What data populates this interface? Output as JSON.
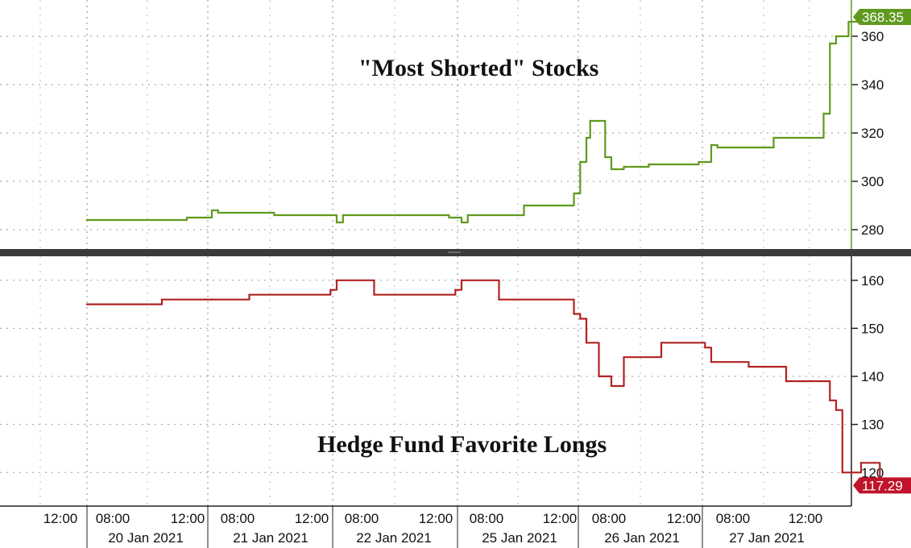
{
  "chart_data": [
    {
      "type": "line",
      "title": "\"Most Shorted\" Stocks",
      "color": "#5f9a1e",
      "last_value_label": "368.35",
      "last_value_bg": "#5f9a1e",
      "ylim": [
        272,
        375
      ],
      "yticks": [
        280,
        300,
        320,
        340,
        360
      ],
      "x": [
        0,
        0.8,
        0.95,
        1.0,
        1.05,
        1.5,
        1.9,
        2.0,
        2.05,
        2.5,
        2.9,
        3.0,
        3.05,
        3.5,
        3.9,
        3.95,
        4.0,
        4.03,
        4.15,
        4.2,
        4.3,
        4.5,
        4.9,
        5.0,
        5.05,
        5.5,
        5.9,
        5.95,
        6.0,
        6.1,
        6.25
      ],
      "values": [
        284,
        285,
        285,
        288,
        287,
        286,
        286,
        283,
        286,
        286,
        285,
        283,
        286,
        290,
        295,
        308,
        318,
        325,
        310,
        305,
        306,
        307,
        308,
        315,
        314,
        318,
        328,
        357,
        360,
        366,
        368
      ]
    },
    {
      "type": "line",
      "title": "Hedge Fund Favorite Longs",
      "color": "#b22222",
      "last_value_label": "117.29",
      "last_value_bg": "#c0142a",
      "ylim": [
        113,
        165
      ],
      "yticks": [
        120,
        130,
        140,
        150,
        160
      ],
      "x": [
        0,
        0.6,
        0.95,
        1.0,
        1.3,
        1.95,
        2.0,
        2.3,
        2.95,
        3.0,
        3.3,
        3.9,
        3.95,
        4.0,
        4.1,
        4.2,
        4.3,
        4.6,
        4.95,
        5.0,
        5.3,
        5.6,
        5.95,
        6.0,
        6.05,
        6.2,
        6.35
      ],
      "values": [
        155,
        156,
        156,
        156,
        157,
        158,
        160,
        157,
        158,
        160,
        156,
        153,
        152,
        147,
        140,
        138,
        144,
        147,
        146,
        143,
        142,
        139,
        135,
        133,
        120,
        122,
        117.3
      ]
    }
  ],
  "x_axis": {
    "time_labels": [
      "12:00",
      "08:00",
      "12:00",
      "08:00",
      "12:00",
      "08:00",
      "12:00",
      "08:00",
      "12:00",
      "08:00",
      "12:00",
      "08:00",
      "12:00"
    ],
    "date_labels": [
      "20 Jan 2021",
      "21 Jan 2021",
      "22 Jan 2021",
      "25 Jan 2021",
      "26 Jan 2021",
      "27 Jan 2021"
    ]
  }
}
